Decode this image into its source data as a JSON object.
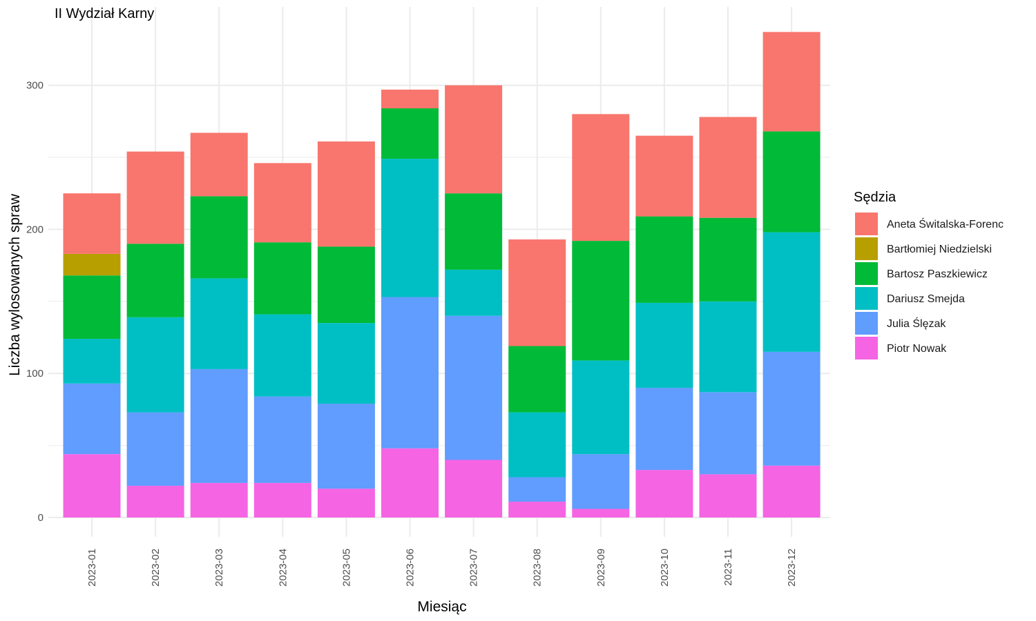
{
  "chart_data": {
    "type": "bar",
    "stacked": true,
    "title": "II Wydział Karny",
    "xlabel": "Miesiąc",
    "ylabel": "Liczba wylosowanych spraw",
    "ylim": [
      0,
      340
    ],
    "yticks": [
      0,
      100,
      200,
      300
    ],
    "grid": true,
    "legend_title": "Sędzia",
    "legend_position": "right",
    "categories": [
      "2023-01",
      "2023-02",
      "2023-03",
      "2023-04",
      "2023-05",
      "2023-06",
      "2023-07",
      "2023-08",
      "2023-09",
      "2023-10",
      "2023-11",
      "2023-12"
    ],
    "series": [
      {
        "name": "Aneta Świtalska-Forenc",
        "color": "#F8766D",
        "values": [
          42,
          64,
          44,
          55,
          73,
          13,
          75,
          74,
          88,
          56,
          70,
          69
        ]
      },
      {
        "name": "Bartłomiej Niedzielski",
        "color": "#B79F00",
        "values": [
          15,
          0,
          0,
          0,
          0,
          0,
          0,
          0,
          0,
          0,
          0,
          0
        ]
      },
      {
        "name": "Bartosz Paszkiewicz",
        "color": "#00BA38",
        "values": [
          44,
          51,
          57,
          50,
          53,
          35,
          53,
          46,
          83,
          60,
          58,
          70
        ]
      },
      {
        "name": "Dariusz Smejda",
        "color": "#00BFC4",
        "values": [
          31,
          66,
          63,
          57,
          56,
          96,
          32,
          45,
          65,
          59,
          63,
          83
        ]
      },
      {
        "name": "Julia Ślęzak",
        "color": "#619CFF",
        "values": [
          49,
          51,
          79,
          60,
          59,
          105,
          100,
          17,
          38,
          57,
          57,
          79
        ]
      },
      {
        "name": "Piotr Nowak",
        "color": "#F564E3",
        "values": [
          44,
          22,
          24,
          24,
          20,
          48,
          40,
          11,
          6,
          33,
          30,
          36
        ]
      }
    ]
  }
}
